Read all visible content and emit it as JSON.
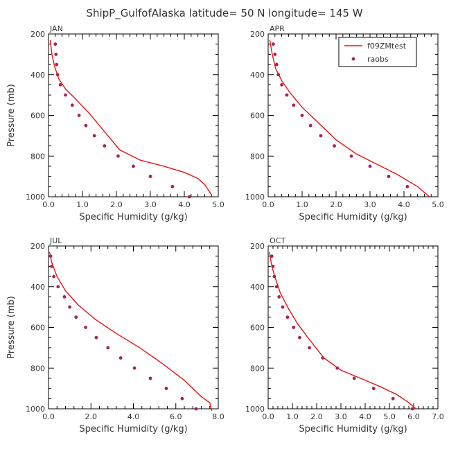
{
  "title": "ShipP_GulfofAlaska  latitude= 50 N longitude= 145 W",
  "legend": {
    "model_label": "f09ZMtest",
    "obs_label": "raobs",
    "placement": "top-right of APR panel"
  },
  "colors": {
    "model": "#ee1111",
    "obs": "#aa2255",
    "axis": "#000000",
    "text": "#333333"
  },
  "chart_data": [
    {
      "type": "line",
      "panel": "JAN",
      "xlabel": "Specific Humidity (g/kg)",
      "ylabel": "Pressure (mb)",
      "xlim": [
        0,
        5
      ],
      "ylim": [
        200,
        1000
      ],
      "y_inverted": true,
      "xticks": [
        "0.0",
        "1.0",
        "2.0",
        "3.0",
        "4.0",
        "5.0"
      ],
      "yticks": [
        "200",
        "400",
        "600",
        "800",
        "1000"
      ],
      "series": [
        {
          "name": "f09ZMtest",
          "style": "line",
          "x": [
            0.05,
            0.1,
            0.18,
            0.3,
            0.5,
            0.8,
            1.2,
            1.7,
            2.1,
            2.7,
            3.4,
            4.0,
            4.4,
            4.6,
            4.8
          ],
          "y": [
            230,
            300,
            360,
            420,
            470,
            520,
            590,
            690,
            770,
            820,
            850,
            880,
            910,
            940,
            990
          ]
        },
        {
          "name": "raobs",
          "style": "markers",
          "x": [
            0.2,
            0.22,
            0.24,
            0.27,
            0.35,
            0.5,
            0.7,
            0.9,
            1.1,
            1.35,
            1.65,
            2.05,
            2.5,
            3.0,
            3.65,
            4.15
          ],
          "y": [
            250,
            300,
            350,
            400,
            450,
            500,
            550,
            600,
            650,
            700,
            750,
            800,
            850,
            900,
            950,
            1000
          ]
        }
      ]
    },
    {
      "type": "line",
      "panel": "APR",
      "xlabel": "Specific Humidity (g/kg)",
      "ylabel": "",
      "xlim": [
        0,
        5
      ],
      "ylim": [
        200,
        1000
      ],
      "y_inverted": true,
      "xticks": [
        "0.0",
        "1.0",
        "2.0",
        "3.0",
        "4.0",
        "5.0"
      ],
      "yticks": [
        "200",
        "400",
        "600",
        "800",
        "1000"
      ],
      "series": [
        {
          "name": "f09ZMtest",
          "style": "line",
          "x": [
            0.05,
            0.12,
            0.22,
            0.4,
            0.65,
            1.0,
            1.5,
            2.0,
            2.6,
            3.2,
            3.8,
            4.4,
            4.75
          ],
          "y": [
            230,
            300,
            370,
            430,
            490,
            560,
            640,
            720,
            790,
            840,
            890,
            950,
            1000
          ]
        },
        {
          "name": "raobs",
          "style": "markers",
          "x": [
            0.15,
            0.2,
            0.25,
            0.3,
            0.4,
            0.55,
            0.75,
            1.0,
            1.25,
            1.55,
            1.95,
            2.45,
            3.0,
            3.55,
            4.1
          ],
          "y": [
            250,
            300,
            350,
            400,
            450,
            500,
            550,
            600,
            650,
            700,
            750,
            800,
            850,
            900,
            950
          ]
        }
      ]
    },
    {
      "type": "line",
      "panel": "JUL",
      "xlabel": "Specific Humidity (g/kg)",
      "ylabel": "Pressure (mb)",
      "xlim": [
        0,
        8
      ],
      "ylim": [
        200,
        1000
      ],
      "y_inverted": true,
      "xticks": [
        "0.0",
        "2.0",
        "4.0",
        "6.0",
        "8.0"
      ],
      "yticks": [
        "200",
        "400",
        "600",
        "800",
        "1000"
      ],
      "series": [
        {
          "name": "f09ZMtest",
          "style": "line",
          "x": [
            0.05,
            0.15,
            0.4,
            0.8,
            1.4,
            2.2,
            3.2,
            4.3,
            5.4,
            6.4,
            7.2,
            7.6,
            7.7
          ],
          "y": [
            230,
            280,
            350,
            420,
            490,
            560,
            630,
            700,
            780,
            860,
            940,
            970,
            1010
          ]
        },
        {
          "name": "raobs",
          "style": "markers",
          "x": [
            0.1,
            0.15,
            0.25,
            0.45,
            0.75,
            1.0,
            1.3,
            1.75,
            2.25,
            2.8,
            3.4,
            4.05,
            4.8,
            5.55,
            6.3,
            6.95
          ],
          "y": [
            250,
            300,
            350,
            400,
            450,
            500,
            550,
            600,
            650,
            700,
            750,
            800,
            850,
            900,
            950,
            1000
          ]
        }
      ]
    },
    {
      "type": "line",
      "panel": "OCT",
      "xlabel": "Specific Humidity (g/kg)",
      "ylabel": "",
      "xlim": [
        0,
        7
      ],
      "ylim": [
        200,
        1000
      ],
      "y_inverted": true,
      "xticks": [
        "0.0",
        "1.0",
        "2.0",
        "3.0",
        "4.0",
        "5.0",
        "6.0",
        "7.0"
      ],
      "yticks": [
        "200",
        "400",
        "600",
        "800",
        "1000"
      ],
      "series": [
        {
          "name": "f09ZMtest",
          "style": "line",
          "x": [
            0.05,
            0.15,
            0.3,
            0.5,
            0.8,
            1.2,
            1.7,
            2.3,
            3.0,
            3.8,
            4.6,
            5.3,
            5.8,
            6.1
          ],
          "y": [
            230,
            300,
            360,
            430,
            500,
            580,
            660,
            750,
            810,
            850,
            890,
            930,
            970,
            1000
          ]
        },
        {
          "name": "raobs",
          "style": "markers",
          "x": [
            0.15,
            0.2,
            0.25,
            0.35,
            0.45,
            0.6,
            0.8,
            1.05,
            1.3,
            1.7,
            2.25,
            2.85,
            3.55,
            4.35,
            5.15,
            5.95
          ],
          "y": [
            250,
            300,
            350,
            400,
            450,
            500,
            550,
            600,
            650,
            700,
            750,
            800,
            850,
            900,
            950,
            1000
          ]
        }
      ]
    }
  ]
}
